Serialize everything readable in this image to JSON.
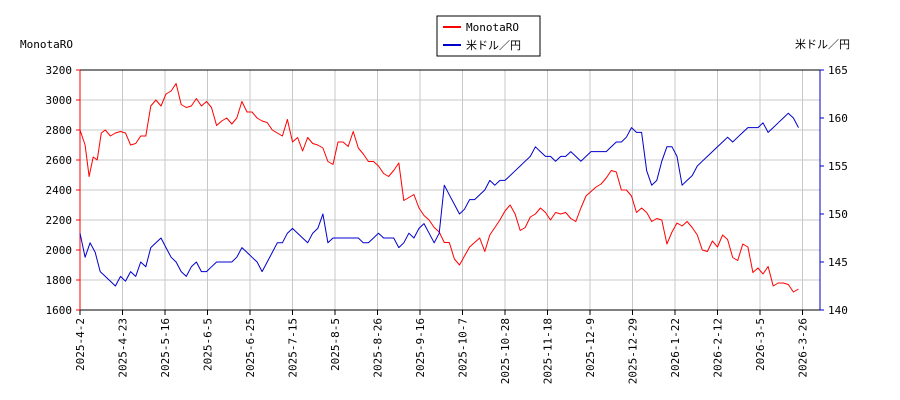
{
  "chart_data": {
    "type": "line",
    "title": "",
    "left_axis": {
      "label": "MonotaRO",
      "range": [
        1600,
        3200
      ],
      "ticks": [
        1600,
        1800,
        2000,
        2200,
        2400,
        2600,
        2800,
        3000,
        3200
      ],
      "color": "#ff0000"
    },
    "right_axis": {
      "label": "米ドル／円",
      "range": [
        140,
        165
      ],
      "ticks": [
        140,
        145,
        150,
        155,
        160,
        165
      ],
      "color": "#0000cc"
    },
    "x_ticks": [
      "2025-4-2",
      "2025-4-23",
      "2025-5-16",
      "2025-6-5",
      "2025-6-25",
      "2025-7-15",
      "2025-8-5",
      "2025-8-26",
      "2025-9-16",
      "2025-10-7",
      "2025-10-28",
      "2025-11-18",
      "2025-12-9",
      "2025-12-29",
      "2026-1-22",
      "2026-2-12",
      "2026-3-5",
      "2026-3-26"
    ],
    "grid": true,
    "legend_position": "top-center",
    "series": [
      {
        "name": "MonotaRO",
        "axis": "left",
        "color": "#ff0000",
        "points": [
          [
            0,
            2800
          ],
          [
            0.5,
            2700
          ],
          [
            0.9,
            2490
          ],
          [
            1.3,
            2620
          ],
          [
            1.7,
            2600
          ],
          [
            2.1,
            2780
          ],
          [
            2.5,
            2800
          ],
          [
            3,
            2760
          ],
          [
            3.5,
            2780
          ],
          [
            4,
            2790
          ],
          [
            4.5,
            2780
          ],
          [
            5,
            2700
          ],
          [
            5.5,
            2710
          ],
          [
            6,
            2760
          ],
          [
            6.5,
            2760
          ],
          [
            7,
            2960
          ],
          [
            7.5,
            3000
          ],
          [
            8,
            2960
          ],
          [
            8.5,
            3040
          ],
          [
            9,
            3060
          ],
          [
            9.5,
            3110
          ],
          [
            10,
            2970
          ],
          [
            10.5,
            2950
          ],
          [
            11,
            2960
          ],
          [
            11.5,
            3010
          ],
          [
            12,
            2960
          ],
          [
            12.5,
            2990
          ],
          [
            13,
            2950
          ],
          [
            13.5,
            2830
          ],
          [
            14,
            2860
          ],
          [
            14.5,
            2880
          ],
          [
            15,
            2840
          ],
          [
            15.5,
            2880
          ],
          [
            16,
            2990
          ],
          [
            16.5,
            2920
          ],
          [
            17,
            2920
          ],
          [
            17.5,
            2880
          ],
          [
            18,
            2860
          ],
          [
            18.5,
            2850
          ],
          [
            19,
            2800
          ],
          [
            19.5,
            2780
          ],
          [
            20,
            2760
          ],
          [
            20.5,
            2870
          ],
          [
            21,
            2720
          ],
          [
            21.5,
            2750
          ],
          [
            22,
            2660
          ],
          [
            22.5,
            2750
          ],
          [
            23,
            2710
          ],
          [
            23.5,
            2700
          ],
          [
            24,
            2680
          ],
          [
            24.5,
            2590
          ],
          [
            25,
            2570
          ],
          [
            25.5,
            2720
          ],
          [
            26,
            2720
          ],
          [
            26.5,
            2690
          ],
          [
            27,
            2790
          ],
          [
            27.5,
            2680
          ],
          [
            28,
            2640
          ],
          [
            28.5,
            2590
          ],
          [
            29,
            2590
          ],
          [
            29.5,
            2560
          ],
          [
            30,
            2510
          ],
          [
            30.5,
            2490
          ],
          [
            31,
            2530
          ],
          [
            31.5,
            2580
          ],
          [
            32,
            2330
          ],
          [
            32.5,
            2350
          ],
          [
            33,
            2370
          ],
          [
            33.5,
            2280
          ],
          [
            34,
            2230
          ],
          [
            34.5,
            2200
          ],
          [
            35,
            2150
          ],
          [
            35.5,
            2120
          ],
          [
            36,
            2050
          ],
          [
            36.5,
            2050
          ],
          [
            37,
            1940
          ],
          [
            37.5,
            1900
          ],
          [
            38,
            1960
          ],
          [
            38.5,
            2020
          ],
          [
            39,
            2050
          ],
          [
            39.5,
            2080
          ],
          [
            40,
            1990
          ],
          [
            40.5,
            2100
          ],
          [
            41,
            2150
          ],
          [
            41.5,
            2200
          ],
          [
            42,
            2260
          ],
          [
            42.5,
            2300
          ],
          [
            43,
            2240
          ],
          [
            43.5,
            2130
          ],
          [
            44,
            2150
          ],
          [
            44.5,
            2220
          ],
          [
            45,
            2240
          ],
          [
            45.5,
            2280
          ],
          [
            46,
            2250
          ],
          [
            46.5,
            2200
          ],
          [
            47,
            2250
          ],
          [
            47.5,
            2240
          ],
          [
            48,
            2250
          ],
          [
            48.5,
            2210
          ],
          [
            49,
            2190
          ],
          [
            49.5,
            2280
          ],
          [
            50,
            2360
          ],
          [
            50.5,
            2390
          ],
          [
            51,
            2420
          ],
          [
            51.5,
            2440
          ],
          [
            52,
            2480
          ],
          [
            52.5,
            2530
          ],
          [
            53,
            2520
          ],
          [
            53.5,
            2400
          ],
          [
            54,
            2400
          ],
          [
            54.5,
            2360
          ],
          [
            55,
            2250
          ],
          [
            55.5,
            2280
          ],
          [
            56,
            2250
          ],
          [
            56.5,
            2190
          ],
          [
            57,
            2210
          ],
          [
            57.5,
            2200
          ],
          [
            58,
            2040
          ],
          [
            58.5,
            2120
          ],
          [
            59,
            2180
          ],
          [
            59.5,
            2160
          ],
          [
            60,
            2190
          ],
          [
            60.5,
            2150
          ],
          [
            61,
            2100
          ],
          [
            61.5,
            2000
          ],
          [
            62,
            1990
          ],
          [
            62.5,
            2060
          ],
          [
            63,
            2020
          ],
          [
            63.5,
            2100
          ],
          [
            64,
            2070
          ],
          [
            64.5,
            1950
          ],
          [
            65,
            1930
          ],
          [
            65.5,
            2040
          ],
          [
            66,
            2020
          ],
          [
            66.5,
            1850
          ],
          [
            67,
            1880
          ],
          [
            67.5,
            1840
          ],
          [
            68,
            1890
          ],
          [
            68.5,
            1760
          ],
          [
            69,
            1780
          ],
          [
            69.5,
            1780
          ],
          [
            70,
            1770
          ],
          [
            70.5,
            1720
          ],
          [
            71,
            1740
          ]
        ]
      },
      {
        "name": "米ドル／円",
        "axis": "right",
        "color": "#0000cc",
        "points": [
          [
            0,
            148
          ],
          [
            0.5,
            145.5
          ],
          [
            1,
            147
          ],
          [
            1.5,
            146
          ],
          [
            2,
            144
          ],
          [
            2.5,
            143.5
          ],
          [
            3,
            143
          ],
          [
            3.5,
            142.5
          ],
          [
            4,
            143.5
          ],
          [
            4.5,
            143
          ],
          [
            5,
            144
          ],
          [
            5.5,
            143.5
          ],
          [
            6,
            145
          ],
          [
            6.5,
            144.5
          ],
          [
            7,
            146.5
          ],
          [
            7.5,
            147
          ],
          [
            8,
            147.5
          ],
          [
            8.5,
            146.5
          ],
          [
            9,
            145.5
          ],
          [
            9.5,
            145
          ],
          [
            10,
            144
          ],
          [
            10.5,
            143.5
          ],
          [
            11,
            144.5
          ],
          [
            11.5,
            145
          ],
          [
            12,
            144
          ],
          [
            12.5,
            144
          ],
          [
            13,
            144.5
          ],
          [
            13.5,
            145
          ],
          [
            14,
            145
          ],
          [
            14.5,
            145
          ],
          [
            15,
            145
          ],
          [
            15.5,
            145.5
          ],
          [
            16,
            146.5
          ],
          [
            16.5,
            146
          ],
          [
            17,
            145.5
          ],
          [
            17.5,
            145
          ],
          [
            18,
            144
          ],
          [
            18.5,
            145
          ],
          [
            19,
            146
          ],
          [
            19.5,
            147
          ],
          [
            20,
            147
          ],
          [
            20.5,
            148
          ],
          [
            21,
            148.5
          ],
          [
            21.5,
            148
          ],
          [
            22,
            147.5
          ],
          [
            22.5,
            147
          ],
          [
            23,
            148
          ],
          [
            23.5,
            148.5
          ],
          [
            24,
            150
          ],
          [
            24.5,
            147
          ],
          [
            25,
            147.5
          ],
          [
            25.5,
            147.5
          ],
          [
            26,
            147.5
          ],
          [
            26.5,
            147.5
          ],
          [
            27,
            147.5
          ],
          [
            27.5,
            147.5
          ],
          [
            28,
            147
          ],
          [
            28.5,
            147
          ],
          [
            29,
            147.5
          ],
          [
            29.5,
            148
          ],
          [
            30,
            147.5
          ],
          [
            30.5,
            147.5
          ],
          [
            31,
            147.5
          ],
          [
            31.5,
            146.5
          ],
          [
            32,
            147
          ],
          [
            32.5,
            148
          ],
          [
            33,
            147.5
          ],
          [
            33.5,
            148.5
          ],
          [
            34,
            149
          ],
          [
            34.5,
            148
          ],
          [
            35,
            147
          ],
          [
            35.5,
            148
          ],
          [
            36,
            153
          ],
          [
            36.5,
            152
          ],
          [
            37,
            151
          ],
          [
            37.5,
            150
          ],
          [
            38,
            150.5
          ],
          [
            38.5,
            151.5
          ],
          [
            39,
            151.5
          ],
          [
            39.5,
            152
          ],
          [
            40,
            152.5
          ],
          [
            40.5,
            153.5
          ],
          [
            41,
            153
          ],
          [
            41.5,
            153.5
          ],
          [
            42,
            153.5
          ],
          [
            42.5,
            154
          ],
          [
            43,
            154.5
          ],
          [
            43.5,
            155
          ],
          [
            44,
            155.5
          ],
          [
            44.5,
            156
          ],
          [
            45,
            157
          ],
          [
            45.5,
            156.5
          ],
          [
            46,
            156
          ],
          [
            46.5,
            156
          ],
          [
            47,
            155.5
          ],
          [
            47.5,
            156
          ],
          [
            48,
            156
          ],
          [
            48.5,
            156.5
          ],
          [
            49,
            156
          ],
          [
            49.5,
            155.5
          ],
          [
            50,
            156
          ],
          [
            50.5,
            156.5
          ],
          [
            51,
            156.5
          ],
          [
            51.5,
            156.5
          ],
          [
            52,
            156.5
          ],
          [
            52.5,
            157
          ],
          [
            53,
            157.5
          ],
          [
            53.5,
            157.5
          ],
          [
            54,
            158
          ],
          [
            54.5,
            159
          ],
          [
            55,
            158.5
          ],
          [
            55.5,
            158.5
          ],
          [
            56,
            154.5
          ],
          [
            56.5,
            153
          ],
          [
            57,
            153.5
          ],
          [
            57.5,
            155.5
          ],
          [
            58,
            157
          ],
          [
            58.5,
            157
          ],
          [
            59,
            156
          ],
          [
            59.5,
            153
          ],
          [
            60,
            153.5
          ],
          [
            60.5,
            154
          ],
          [
            61,
            155
          ],
          [
            61.5,
            155.5
          ],
          [
            62,
            156
          ],
          [
            62.5,
            156.5
          ],
          [
            63,
            157
          ],
          [
            63.5,
            157.5
          ],
          [
            64,
            158
          ],
          [
            64.5,
            157.5
          ],
          [
            65,
            158
          ],
          [
            65.5,
            158.5
          ],
          [
            66,
            159
          ],
          [
            66.5,
            159
          ],
          [
            67,
            159
          ],
          [
            67.5,
            159.5
          ],
          [
            68,
            158.5
          ],
          [
            68.5,
            159
          ],
          [
            69,
            159.5
          ],
          [
            69.5,
            160
          ],
          [
            70,
            160.5
          ],
          [
            70.5,
            160
          ],
          [
            71,
            159
          ]
        ]
      }
    ]
  }
}
